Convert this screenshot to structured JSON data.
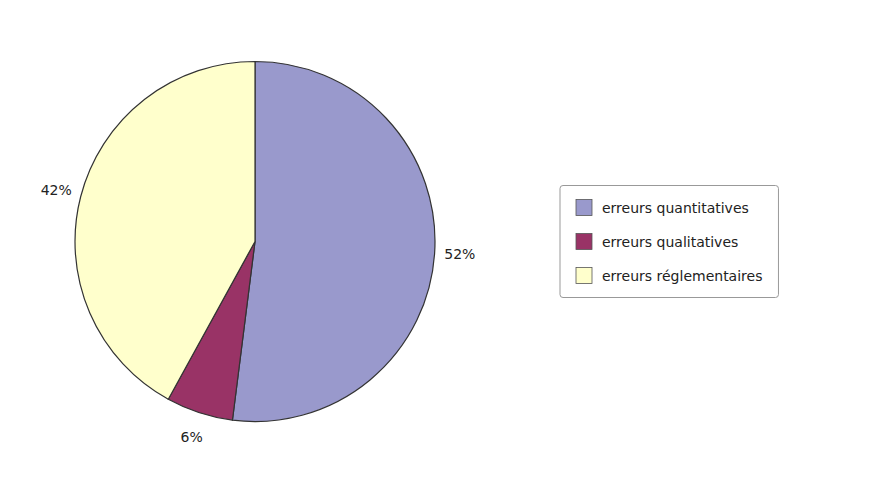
{
  "chart_data": {
    "type": "pie",
    "categories": [
      "erreurs quantitatives",
      "erreurs qualitatives",
      "erreurs réglementaires"
    ],
    "values": [
      52,
      6,
      42
    ],
    "value_labels": [
      "52%",
      "6%",
      "42%"
    ],
    "colors": [
      "#9999cc",
      "#993366",
      "#ffffcc"
    ],
    "data_labels": true,
    "legend": "right"
  }
}
